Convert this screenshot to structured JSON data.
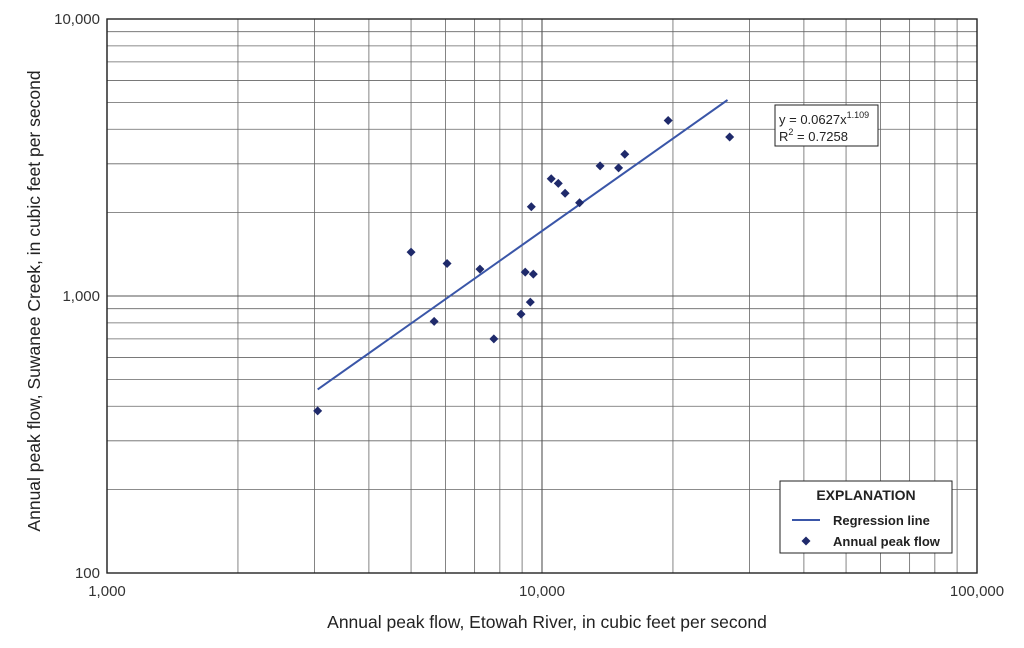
{
  "chart_data": {
    "type": "scatter",
    "x_scale": "log",
    "y_scale": "log",
    "xlim": [
      1000,
      100000
    ],
    "ylim": [
      100,
      10000
    ],
    "grid": true,
    "xlabel": "Annual peak flow, Etowah River, in cubic feet per second",
    "ylabel": "Annual peak flow, Suwanee Creek, in cubic feet per second",
    "x_ticks": [
      {
        "value": 1000,
        "label": "1,000"
      },
      {
        "value": 10000,
        "label": "10,000"
      },
      {
        "value": 100000,
        "label": "100,000"
      }
    ],
    "y_ticks": [
      {
        "value": 100,
        "label": "100"
      },
      {
        "value": 1000,
        "label": "1,000"
      },
      {
        "value": 10000,
        "label": "10,000"
      }
    ],
    "series": [
      {
        "name": "Annual peak flow",
        "marker": "diamond",
        "color": "#1f2a6b",
        "points": [
          {
            "x": 3050,
            "y": 385
          },
          {
            "x": 5000,
            "y": 1440
          },
          {
            "x": 5650,
            "y": 810
          },
          {
            "x": 6050,
            "y": 1310
          },
          {
            "x": 7200,
            "y": 1250
          },
          {
            "x": 7750,
            "y": 700
          },
          {
            "x": 8950,
            "y": 860
          },
          {
            "x": 9150,
            "y": 1220
          },
          {
            "x": 9400,
            "y": 950
          },
          {
            "x": 9450,
            "y": 2100
          },
          {
            "x": 9550,
            "y": 1200
          },
          {
            "x": 10500,
            "y": 2650
          },
          {
            "x": 10900,
            "y": 2550
          },
          {
            "x": 11300,
            "y": 2350
          },
          {
            "x": 12200,
            "y": 2170
          },
          {
            "x": 13600,
            "y": 2950
          },
          {
            "x": 15000,
            "y": 2900
          },
          {
            "x": 15500,
            "y": 3250
          },
          {
            "x": 19500,
            "y": 4300
          },
          {
            "x": 27000,
            "y": 3750
          }
        ]
      },
      {
        "name": "Regression line",
        "type": "line",
        "color": "#3a56a8",
        "points": [
          {
            "x": 3050,
            "y": 460
          },
          {
            "x": 26700,
            "y": 5100
          }
        ]
      }
    ],
    "annotation": {
      "equation_prefix": "y = 0.0627x",
      "equation_exponent": "1.109",
      "r2_prefix": "R",
      "r2_exponent": "2",
      "r2_value": " = 0.7258"
    },
    "legend": {
      "title": "EXPLANATION",
      "placement": "bottom-right",
      "items": [
        "Regression line",
        "Annual peak flow"
      ]
    }
  }
}
